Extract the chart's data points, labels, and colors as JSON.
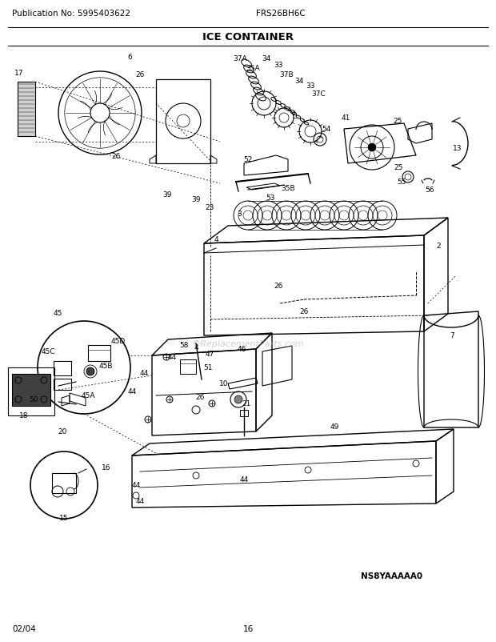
{
  "pub_no": "Publication No: 5995403622",
  "model": "FRS26BH6C",
  "title": "ICE CONTAINER",
  "diagram_code": "NS8YAAAAA0",
  "date": "02/04",
  "page": "16",
  "bg_color": "#ffffff",
  "text_color": "#000000",
  "watermark": "©ReplacementParts.com",
  "header_fontsize": 7.5,
  "title_fontsize": 9.5,
  "footer_fontsize": 7.5,
  "label_fontsize": 6.5
}
